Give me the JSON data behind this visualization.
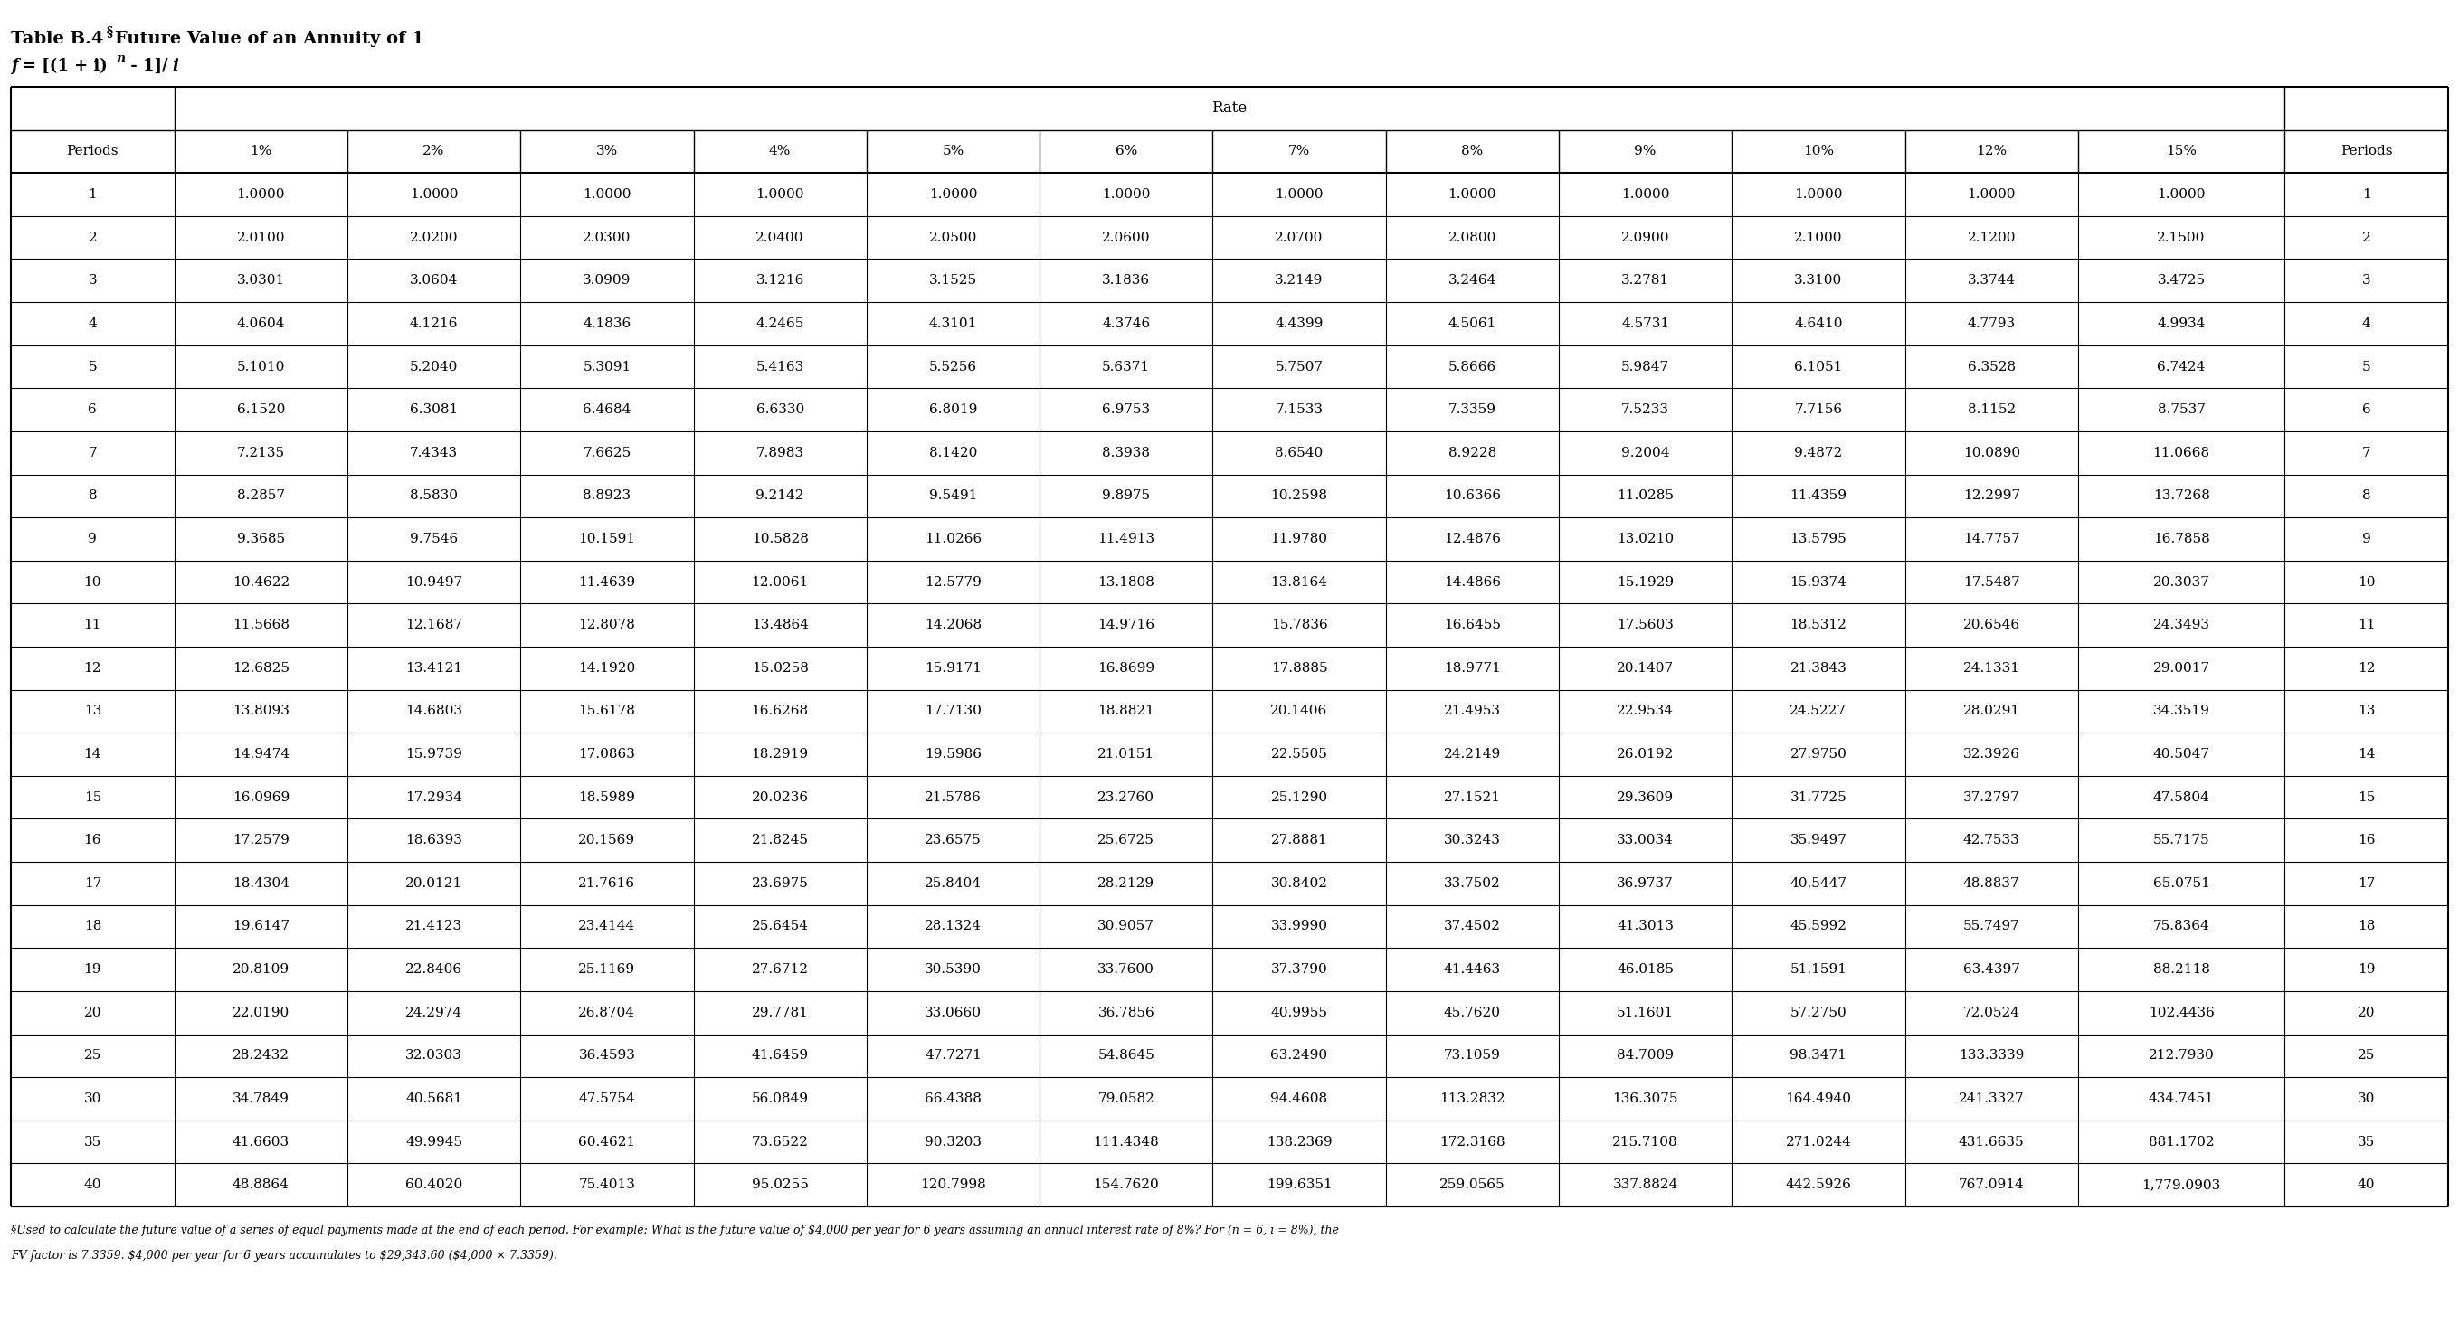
{
  "col_headers": [
    "Periods",
    "1%",
    "2%",
    "3%",
    "4%",
    "5%",
    "6%",
    "7%",
    "8%",
    "9%",
    "10%",
    "12%",
    "15%",
    "Periods"
  ],
  "rows": [
    [
      "1",
      "1.0000",
      "1.0000",
      "1.0000",
      "1.0000",
      "1.0000",
      "1.0000",
      "1.0000",
      "1.0000",
      "1.0000",
      "1.0000",
      "1.0000",
      "1.0000",
      "1"
    ],
    [
      "2",
      "2.0100",
      "2.0200",
      "2.0300",
      "2.0400",
      "2.0500",
      "2.0600",
      "2.0700",
      "2.0800",
      "2.0900",
      "2.1000",
      "2.1200",
      "2.1500",
      "2"
    ],
    [
      "3",
      "3.0301",
      "3.0604",
      "3.0909",
      "3.1216",
      "3.1525",
      "3.1836",
      "3.2149",
      "3.2464",
      "3.2781",
      "3.3100",
      "3.3744",
      "3.4725",
      "3"
    ],
    [
      "4",
      "4.0604",
      "4.1216",
      "4.1836",
      "4.2465",
      "4.3101",
      "4.3746",
      "4.4399",
      "4.5061",
      "4.5731",
      "4.6410",
      "4.7793",
      "4.9934",
      "4"
    ],
    [
      "5",
      "5.1010",
      "5.2040",
      "5.3091",
      "5.4163",
      "5.5256",
      "5.6371",
      "5.7507",
      "5.8666",
      "5.9847",
      "6.1051",
      "6.3528",
      "6.7424",
      "5"
    ],
    [
      "6",
      "6.1520",
      "6.3081",
      "6.4684",
      "6.6330",
      "6.8019",
      "6.9753",
      "7.1533",
      "7.3359",
      "7.5233",
      "7.7156",
      "8.1152",
      "8.7537",
      "6"
    ],
    [
      "7",
      "7.2135",
      "7.4343",
      "7.6625",
      "7.8983",
      "8.1420",
      "8.3938",
      "8.6540",
      "8.9228",
      "9.2004",
      "9.4872",
      "10.0890",
      "11.0668",
      "7"
    ],
    [
      "8",
      "8.2857",
      "8.5830",
      "8.8923",
      "9.2142",
      "9.5491",
      "9.8975",
      "10.2598",
      "10.6366",
      "11.0285",
      "11.4359",
      "12.2997",
      "13.7268",
      "8"
    ],
    [
      "9",
      "9.3685",
      "9.7546",
      "10.1591",
      "10.5828",
      "11.0266",
      "11.4913",
      "11.9780",
      "12.4876",
      "13.0210",
      "13.5795",
      "14.7757",
      "16.7858",
      "9"
    ],
    [
      "10",
      "10.4622",
      "10.9497",
      "11.4639",
      "12.0061",
      "12.5779",
      "13.1808",
      "13.8164",
      "14.4866",
      "15.1929",
      "15.9374",
      "17.5487",
      "20.3037",
      "10"
    ],
    [
      "11",
      "11.5668",
      "12.1687",
      "12.8078",
      "13.4864",
      "14.2068",
      "14.9716",
      "15.7836",
      "16.6455",
      "17.5603",
      "18.5312",
      "20.6546",
      "24.3493",
      "11"
    ],
    [
      "12",
      "12.6825",
      "13.4121",
      "14.1920",
      "15.0258",
      "15.9171",
      "16.8699",
      "17.8885",
      "18.9771",
      "20.1407",
      "21.3843",
      "24.1331",
      "29.0017",
      "12"
    ],
    [
      "13",
      "13.8093",
      "14.6803",
      "15.6178",
      "16.6268",
      "17.7130",
      "18.8821",
      "20.1406",
      "21.4953",
      "22.9534",
      "24.5227",
      "28.0291",
      "34.3519",
      "13"
    ],
    [
      "14",
      "14.9474",
      "15.9739",
      "17.0863",
      "18.2919",
      "19.5986",
      "21.0151",
      "22.5505",
      "24.2149",
      "26.0192",
      "27.9750",
      "32.3926",
      "40.5047",
      "14"
    ],
    [
      "15",
      "16.0969",
      "17.2934",
      "18.5989",
      "20.0236",
      "21.5786",
      "23.2760",
      "25.1290",
      "27.1521",
      "29.3609",
      "31.7725",
      "37.2797",
      "47.5804",
      "15"
    ],
    [
      "16",
      "17.2579",
      "18.6393",
      "20.1569",
      "21.8245",
      "23.6575",
      "25.6725",
      "27.8881",
      "30.3243",
      "33.0034",
      "35.9497",
      "42.7533",
      "55.7175",
      "16"
    ],
    [
      "17",
      "18.4304",
      "20.0121",
      "21.7616",
      "23.6975",
      "25.8404",
      "28.2129",
      "30.8402",
      "33.7502",
      "36.9737",
      "40.5447",
      "48.8837",
      "65.0751",
      "17"
    ],
    [
      "18",
      "19.6147",
      "21.4123",
      "23.4144",
      "25.6454",
      "28.1324",
      "30.9057",
      "33.9990",
      "37.4502",
      "41.3013",
      "45.5992",
      "55.7497",
      "75.8364",
      "18"
    ],
    [
      "19",
      "20.8109",
      "22.8406",
      "25.1169",
      "27.6712",
      "30.5390",
      "33.7600",
      "37.3790",
      "41.4463",
      "46.0185",
      "51.1591",
      "63.4397",
      "88.2118",
      "19"
    ],
    [
      "20",
      "22.0190",
      "24.2974",
      "26.8704",
      "29.7781",
      "33.0660",
      "36.7856",
      "40.9955",
      "45.7620",
      "51.1601",
      "57.2750",
      "72.0524",
      "102.4436",
      "20"
    ],
    [
      "25",
      "28.2432",
      "32.0303",
      "36.4593",
      "41.6459",
      "47.7271",
      "54.8645",
      "63.2490",
      "73.1059",
      "84.7009",
      "98.3471",
      "133.3339",
      "212.7930",
      "25"
    ],
    [
      "30",
      "34.7849",
      "40.5681",
      "47.5754",
      "56.0849",
      "66.4388",
      "79.0582",
      "94.4608",
      "113.2832",
      "136.3075",
      "164.4940",
      "241.3327",
      "434.7451",
      "30"
    ],
    [
      "35",
      "41.6603",
      "49.9945",
      "60.4621",
      "73.6522",
      "90.3203",
      "111.4348",
      "138.2369",
      "172.3168",
      "215.7108",
      "271.0244",
      "431.6635",
      "881.1702",
      "35"
    ],
    [
      "40",
      "48.8864",
      "60.4020",
      "75.4013",
      "95.0255",
      "120.7998",
      "154.7620",
      "199.6351",
      "259.0565",
      "337.8824",
      "442.5926",
      "767.0914",
      "1,779.0903",
      "40"
    ]
  ],
  "footnote_line1": "§Used to calculate the future value of a series of equal payments made at the end of each period. For example: What is the future value of $4,000 per year for 6 years assuming an annual interest rate of 8%? For (n = 6, i = 8%), the",
  "footnote_line2": "FV factor is 7.3359. $4,000 per year for 6 years accumulates to $29,343.60 ($4,000 × 7.3359).",
  "bg_color": "#ffffff",
  "text_color": "#000000"
}
